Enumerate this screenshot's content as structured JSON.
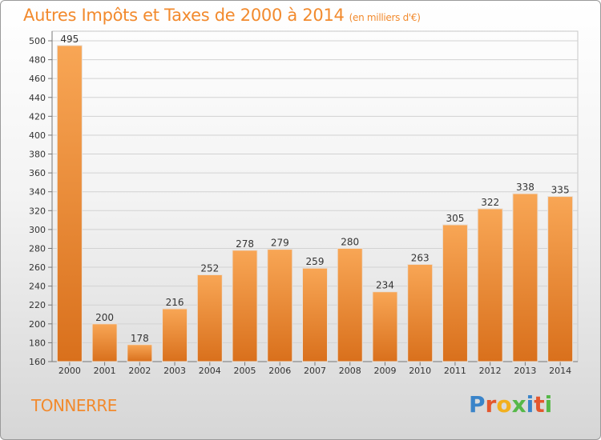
{
  "title": "Autres Impôts et Taxes de 2000 à 2014",
  "subtitle": "(en milliers d'€)",
  "commune": "TONNERRE",
  "logo_text": "Proxiti",
  "colors": {
    "bar_light": "#f8a655",
    "bar_dark": "#d9701c",
    "title": "#f28a2d",
    "grid": "#d2d2d2",
    "logo": [
      "#3a84c9",
      "#e4572e",
      "#f2b01e",
      "#55b848",
      "#3a84c9",
      "#e4572e",
      "#55b848"
    ]
  },
  "chart_data": {
    "type": "bar",
    "categories": [
      "2000",
      "2001",
      "2002",
      "2003",
      "2004",
      "2005",
      "2006",
      "2007",
      "2008",
      "2009",
      "2010",
      "2011",
      "2012",
      "2013",
      "2014"
    ],
    "values": [
      495,
      200,
      178,
      216,
      252,
      278,
      279,
      259,
      280,
      234,
      263,
      305,
      322,
      338,
      335
    ],
    "ylim": [
      160,
      500
    ],
    "yticks": [
      160,
      180,
      200,
      220,
      240,
      260,
      280,
      300,
      320,
      340,
      360,
      380,
      400,
      420,
      440,
      460,
      480,
      500
    ],
    "grid": true,
    "data_labels": true
  }
}
